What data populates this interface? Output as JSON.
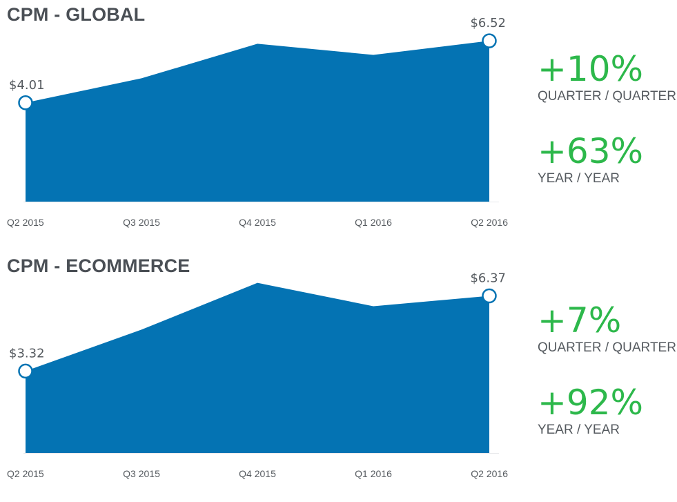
{
  "colors": {
    "area": "#0473b3",
    "positive": "#2db84b",
    "title": "#4a4f55",
    "axis_text": "#555a5f"
  },
  "panels": [
    {
      "title": "CPM - GLOBAL",
      "stats": {
        "quarter": {
          "value": "+10%",
          "label": "QUARTER / QUARTER"
        },
        "year": {
          "value": "+63%",
          "label": "YEAR / YEAR"
        }
      }
    },
    {
      "title": "CPM - ECOMMERCE",
      "stats": {
        "quarter": {
          "value": "+7%",
          "label": "QUARTER / QUARTER"
        },
        "year": {
          "value": "+92%",
          "label": "YEAR / YEAR"
        }
      }
    }
  ],
  "chart_data": [
    {
      "type": "area",
      "title": "CPM - GLOBAL",
      "categories": [
        "Q2 2015",
        "Q3 2015",
        "Q4 2015",
        "Q1 2016",
        "Q2 2016"
      ],
      "values": [
        4.01,
        5.0,
        6.4,
        5.95,
        6.52
      ],
      "point_labels": [
        "$4.01",
        "",
        "",
        "",
        "$6.52"
      ],
      "ylim": [
        0,
        7.0
      ],
      "grid": false,
      "legend": "none"
    },
    {
      "type": "area",
      "title": "CPM - ECOMMERCE",
      "categories": [
        "Q2 2015",
        "Q3 2015",
        "Q4 2015",
        "Q1 2016",
        "Q2 2016"
      ],
      "values": [
        3.32,
        5.0,
        6.9,
        5.95,
        6.37
      ],
      "point_labels": [
        "$3.32",
        "",
        "",
        "",
        "$6.37"
      ],
      "ylim": [
        0,
        7.0
      ],
      "grid": false,
      "legend": "none"
    }
  ]
}
